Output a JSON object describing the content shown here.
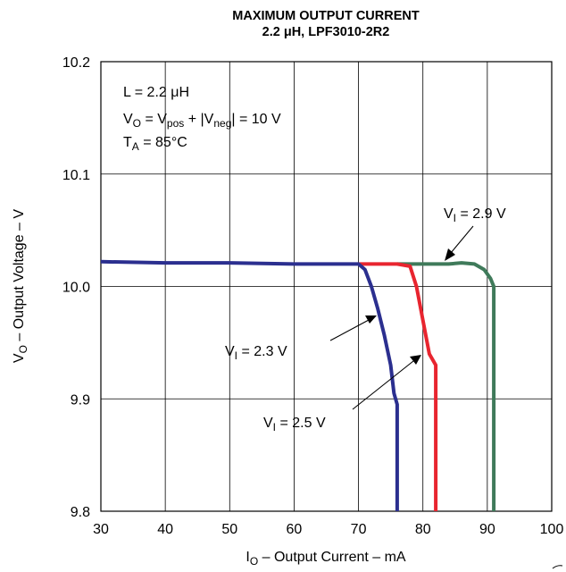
{
  "chart_data": {
    "type": "line",
    "title_line1": "MAXIMUM OUTPUT CURRENT",
    "title_line2": "2.2 μH, LPF3010-2R2",
    "xlabel": {
      "main": "I",
      "sub": "O",
      "rest": " – Output Current – mA"
    },
    "ylabel": {
      "main": "V",
      "sub": "O",
      "rest": " – Output Voltage – V"
    },
    "xlim": [
      30,
      100
    ],
    "ylim": [
      9.8,
      10.2
    ],
    "x_ticks": [
      "30",
      "40",
      "50",
      "60",
      "70",
      "80",
      "90",
      "100"
    ],
    "y_ticks": [
      "9.8",
      "9.9",
      "10.0",
      "10.1",
      "10.2"
    ],
    "grid": true,
    "annotations": {
      "l": "L = 2.2 μH",
      "vo": {
        "a": "V",
        "a_sub": "O",
        "b": " = V",
        "b_sub": "pos",
        "c": " + |V",
        "c_sub": "neg",
        "d": "| = 10 V"
      },
      "ta": {
        "a": "T",
        "a_sub": "A",
        "b": " = 85°C"
      }
    },
    "series": [
      {
        "name": "V_I = 2.3 V",
        "label": {
          "a": "V",
          "sub": "I",
          "b": " = 2.3 V"
        },
        "color": "#2b2f8f",
        "x": [
          30,
          40,
          50,
          60,
          68,
          70,
          71,
          72,
          73,
          74,
          75,
          75.5,
          76,
          76,
          76
        ],
        "y": [
          10.022,
          10.021,
          10.021,
          10.02,
          10.02,
          10.02,
          10.015,
          10.0,
          9.98,
          9.957,
          9.93,
          9.905,
          9.895,
          9.85,
          9.8
        ]
      },
      {
        "name": "V_I = 2.5 V",
        "label": {
          "a": "V",
          "sub": "I",
          "b": " = 2.5 V"
        },
        "color": "#e8252f",
        "x": [
          70,
          76,
          78,
          79,
          80,
          81,
          82,
          82,
          82
        ],
        "y": [
          10.02,
          10.02,
          10.018,
          10.0,
          9.97,
          9.94,
          9.93,
          9.9,
          9.8
        ]
      },
      {
        "name": "V_I = 2.9 V",
        "label": {
          "a": "V",
          "sub": "I",
          "b": " = 2.9 V"
        },
        "color": "#3f7a5a",
        "x": [
          76,
          80,
          84,
          86,
          88,
          89.5,
          90.5,
          91,
          91,
          91
        ],
        "y": [
          10.02,
          10.02,
          10.02,
          10.021,
          10.02,
          10.015,
          10.007,
          10.0,
          9.9,
          9.8
        ]
      }
    ]
  }
}
